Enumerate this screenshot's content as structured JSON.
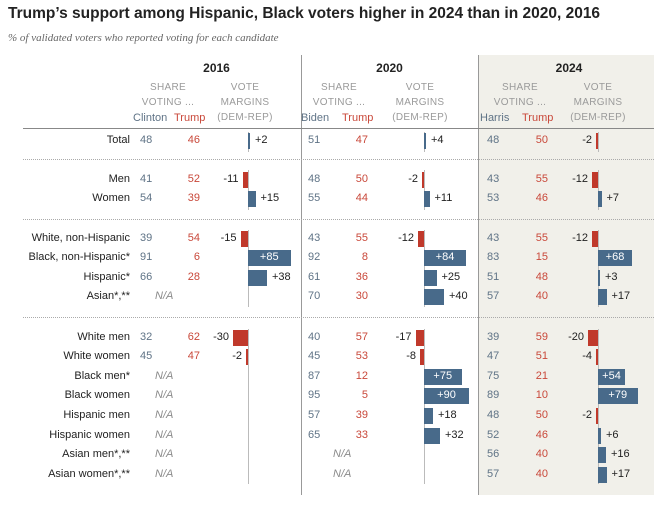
{
  "title": "Trump’s support among Hispanic, Black voters higher in 2024 than in 2020, 2016",
  "subtitle": "% of validated voters who reported voting for each candidate",
  "colors": {
    "dem": "#486a8a",
    "rep": "#c0392b",
    "shade": "#f1f0ea"
  },
  "header": {
    "share_line1": "SHARE",
    "share_line2": "VOTING ...",
    "margin_line1": "VOTE",
    "margin_line2": "MARGINS",
    "margin_line3": "(DEM-REP)",
    "na": "N/A"
  },
  "chart_data": {
    "type": "table",
    "title": "Trump’s support among Hispanic, Black voters higher in 2024 than in 2020, 2016",
    "years": [
      {
        "year": "2016",
        "dem": "Clinton",
        "rep": "Trump"
      },
      {
        "year": "2020",
        "dem": "Biden",
        "rep": "Trump"
      },
      {
        "year": "2024",
        "dem": "Harris",
        "rep": "Trump"
      }
    ],
    "rows": [
      {
        "label": "Total",
        "group": 0,
        "values": [
          {
            "dem": 48,
            "rep": 46,
            "margin": "+2",
            "m": 2
          },
          {
            "dem": 51,
            "rep": 47,
            "margin": "+4",
            "m": 4
          },
          {
            "dem": 48,
            "rep": 50,
            "margin": "-2",
            "m": -2
          }
        ]
      },
      {
        "label": "Men",
        "group": 1,
        "values": [
          {
            "dem": 41,
            "rep": 52,
            "margin": "-11",
            "m": -11
          },
          {
            "dem": 48,
            "rep": 50,
            "margin": "-2",
            "m": -2
          },
          {
            "dem": 43,
            "rep": 55,
            "margin": "-12",
            "m": -12
          }
        ]
      },
      {
        "label": "Women",
        "group": 1,
        "values": [
          {
            "dem": 54,
            "rep": 39,
            "margin": "+15",
            "m": 15
          },
          {
            "dem": 55,
            "rep": 44,
            "margin": "+11",
            "m": 11
          },
          {
            "dem": 53,
            "rep": 46,
            "margin": "+7",
            "m": 7
          }
        ]
      },
      {
        "label": "White, non-Hispanic",
        "group": 2,
        "values": [
          {
            "dem": 39,
            "rep": 54,
            "margin": "-15",
            "m": -15
          },
          {
            "dem": 43,
            "rep": 55,
            "margin": "-12",
            "m": -12
          },
          {
            "dem": 43,
            "rep": 55,
            "margin": "-12",
            "m": -12
          }
        ]
      },
      {
        "label": "Black, non-Hispanic*",
        "group": 2,
        "values": [
          {
            "dem": 91,
            "rep": 6,
            "margin": "+85",
            "m": 85
          },
          {
            "dem": 92,
            "rep": 8,
            "margin": "+84",
            "m": 84
          },
          {
            "dem": 83,
            "rep": 15,
            "margin": "+68",
            "m": 68
          }
        ]
      },
      {
        "label": "Hispanic*",
        "group": 2,
        "values": [
          {
            "dem": 66,
            "rep": 28,
            "margin": "+38",
            "m": 38
          },
          {
            "dem": 61,
            "rep": 36,
            "margin": "+25",
            "m": 25
          },
          {
            "dem": 51,
            "rep": 48,
            "margin": "+3",
            "m": 3
          }
        ]
      },
      {
        "label": "Asian*,**",
        "group": 2,
        "values": [
          null,
          {
            "dem": 70,
            "rep": 30,
            "margin": "+40",
            "m": 40
          },
          {
            "dem": 57,
            "rep": 40,
            "margin": "+17",
            "m": 17
          }
        ]
      },
      {
        "label": "White men",
        "group": 3,
        "values": [
          {
            "dem": 32,
            "rep": 62,
            "margin": "-30",
            "m": -30
          },
          {
            "dem": 40,
            "rep": 57,
            "margin": "-17",
            "m": -17
          },
          {
            "dem": 39,
            "rep": 59,
            "margin": "-20",
            "m": -20
          }
        ]
      },
      {
        "label": "White women",
        "group": 3,
        "values": [
          {
            "dem": 45,
            "rep": 47,
            "margin": "-2",
            "m": -2
          },
          {
            "dem": 45,
            "rep": 53,
            "margin": "-8",
            "m": -8
          },
          {
            "dem": 47,
            "rep": 51,
            "margin": "-4",
            "m": -4
          }
        ]
      },
      {
        "label": "Black men*",
        "group": 3,
        "values": [
          null,
          {
            "dem": 87,
            "rep": 12,
            "margin": "+75",
            "m": 75
          },
          {
            "dem": 75,
            "rep": 21,
            "margin": "+54",
            "m": 54
          }
        ]
      },
      {
        "label": "Black women",
        "group": 3,
        "values": [
          null,
          {
            "dem": 95,
            "rep": 5,
            "margin": "+90",
            "m": 90
          },
          {
            "dem": 89,
            "rep": 10,
            "margin": "+79",
            "m": 79
          }
        ]
      },
      {
        "label": "Hispanic men",
        "group": 3,
        "values": [
          null,
          {
            "dem": 57,
            "rep": 39,
            "margin": "+18",
            "m": 18
          },
          {
            "dem": 48,
            "rep": 50,
            "margin": "-2",
            "m": -2
          }
        ]
      },
      {
        "label": "Hispanic women",
        "group": 3,
        "values": [
          null,
          {
            "dem": 65,
            "rep": 33,
            "margin": "+32",
            "m": 32
          },
          {
            "dem": 52,
            "rep": 46,
            "margin": "+6",
            "m": 6
          }
        ]
      },
      {
        "label": "Asian men*,**",
        "group": 3,
        "values": [
          null,
          null,
          {
            "dem": 56,
            "rep": 40,
            "margin": "+16",
            "m": 16
          }
        ]
      },
      {
        "label": "Asian women*,**",
        "group": 3,
        "values": [
          null,
          null,
          {
            "dem": 57,
            "rep": 40,
            "margin": "+17",
            "m": 17
          }
        ]
      }
    ]
  }
}
